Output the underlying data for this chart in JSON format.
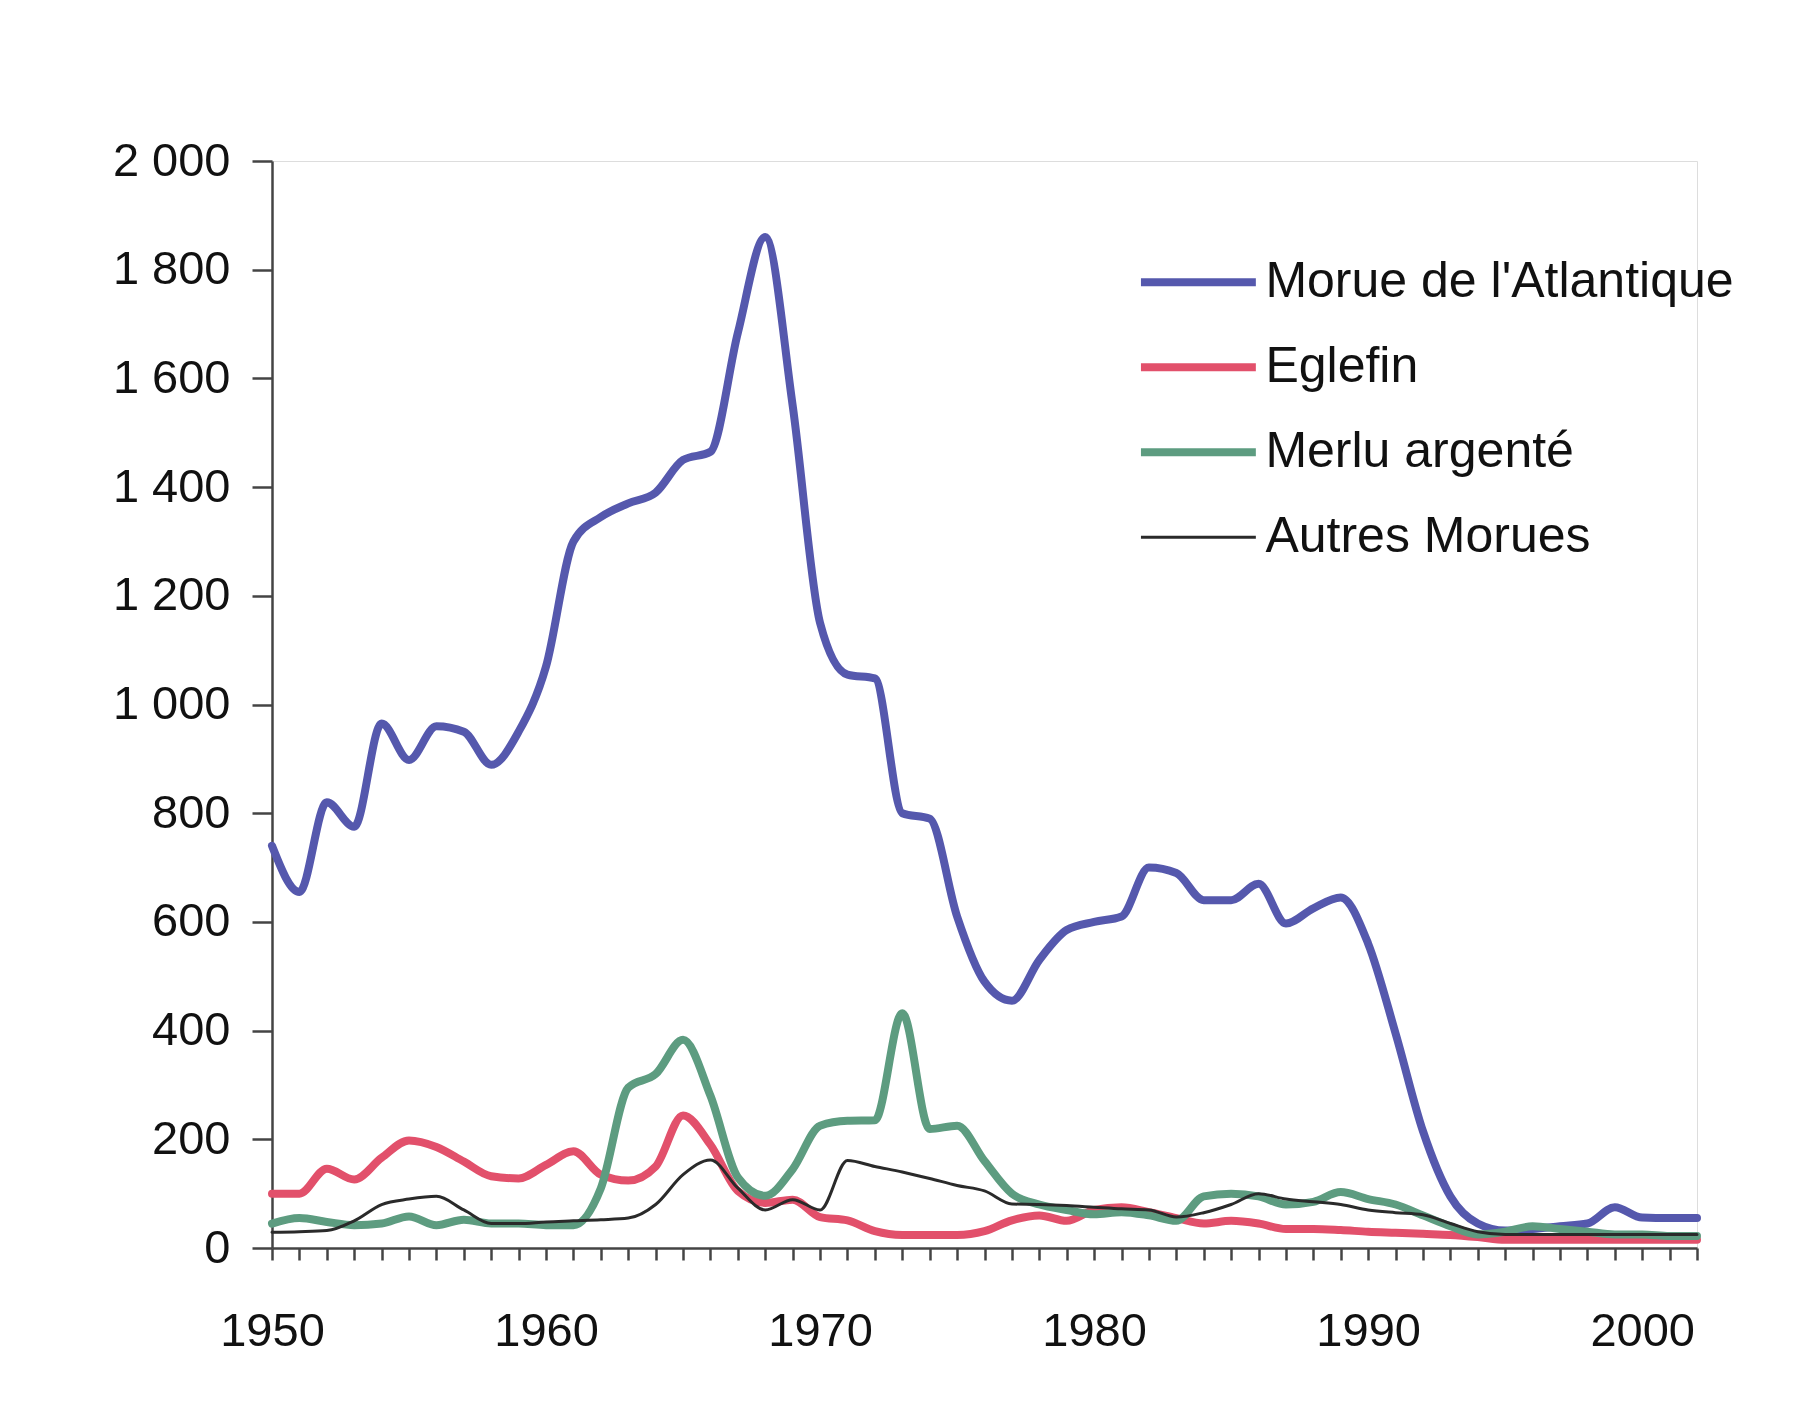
{
  "chart_data": {
    "type": "line",
    "x": [
      1950,
      1951,
      1952,
      1953,
      1954,
      1955,
      1956,
      1957,
      1958,
      1959,
      1960,
      1961,
      1962,
      1963,
      1964,
      1965,
      1966,
      1967,
      1968,
      1969,
      1970,
      1971,
      1972,
      1973,
      1974,
      1975,
      1976,
      1977,
      1978,
      1979,
      1980,
      1981,
      1982,
      1983,
      1984,
      1985,
      1986,
      1987,
      1988,
      1989,
      1990,
      1991,
      1992,
      1993,
      1994,
      1995,
      1996,
      1997,
      1998,
      1999,
      2000,
      2001,
      2002
    ],
    "series": [
      {
        "name": "Morue de l'Atlantique",
        "color": "#5558ad",
        "values": [
          740,
          655,
          820,
          775,
          965,
          898,
          960,
          950,
          889,
          950,
          1070,
          1300,
          1345,
          1370,
          1390,
          1450,
          1465,
          1684,
          1860,
          1550,
          1150,
          1055,
          1048,
          800,
          790,
          610,
          490,
          455,
          530,
          585,
          600,
          610,
          700,
          690,
          640,
          640,
          670,
          597,
          625,
          645,
          560,
          395,
          215,
          95,
          45,
          32,
          35,
          40,
          45,
          75,
          56,
          55,
          55
        ]
      },
      {
        "name": "Eglefin",
        "color": "#e2506b",
        "values": [
          100,
          100,
          146,
          126,
          166,
          198,
          186,
          159,
          132,
          128,
          153,
          178,
          135,
          124,
          150,
          244,
          190,
          105,
          83,
          89,
          57,
          51,
          31,
          24,
          24,
          24,
          31,
          51,
          60,
          50,
          70,
          75,
          66,
          55,
          45,
          50,
          45,
          35,
          35,
          33,
          30,
          28,
          26,
          24,
          20,
          15,
          15,
          15,
          15,
          15,
          15,
          15,
          15
        ]
      },
      {
        "name": "Merlu argenté",
        "color": "#5d9c80",
        "values": [
          45,
          55,
          48,
          42,
          45,
          58,
          42,
          52,
          45,
          45,
          42,
          42,
          110,
          295,
          320,
          383,
          280,
          130,
          96,
          145,
          225,
          234,
          235,
          432,
          219,
          225,
          160,
          100,
          80,
          70,
          62,
          66,
          60,
          50,
          95,
          100,
          95,
          80,
          85,
          103,
          90,
          80,
          60,
          40,
          25,
          30,
          40,
          35,
          30,
          25,
          25,
          22,
          22
        ]
      },
      {
        "name": "Autres Morues",
        "color": "#2a2a2a",
        "values": [
          29,
          30,
          32,
          50,
          80,
          90,
          95,
          70,
          45,
          45,
          48,
          50,
          52,
          55,
          80,
          135,
          162,
          110,
          70,
          89,
          70,
          161,
          150,
          140,
          128,
          115,
          105,
          81,
          80,
          78,
          75,
          72,
          70,
          57,
          65,
          80,
          100,
          90,
          85,
          80,
          70,
          65,
          61,
          45,
          30,
          25,
          25,
          25,
          25,
          25,
          25,
          25,
          25
        ]
      }
    ],
    "xlim": [
      1950,
      2002
    ],
    "xticks": [
      1950,
      {
        "value": 1951,
        "label": null
      },
      {
        "value": 1952,
        "label": null
      },
      {
        "value": 1953,
        "label": null
      },
      {
        "value": 1954,
        "label": null
      },
      {
        "value": 1955,
        "label": null
      },
      {
        "value": 1956,
        "label": null
      },
      {
        "value": 1957,
        "label": null
      },
      {
        "value": 1958,
        "label": null
      },
      {
        "value": 1959,
        "label": null
      },
      1960,
      {
        "value": 1961,
        "label": null
      },
      {
        "value": 1962,
        "label": null
      },
      {
        "value": 1963,
        "label": null
      },
      {
        "value": 1964,
        "label": null
      },
      {
        "value": 1965,
        "label": null
      },
      {
        "value": 1966,
        "label": null
      },
      {
        "value": 1967,
        "label": null
      },
      {
        "value": 1968,
        "label": null
      },
      {
        "value": 1969,
        "label": null
      },
      1970,
      {
        "value": 1971,
        "label": null
      },
      {
        "value": 1972,
        "label": null
      },
      {
        "value": 1973,
        "label": null
      },
      {
        "value": 1974,
        "label": null
      },
      {
        "value": 1975,
        "label": null
      },
      {
        "value": 1976,
        "label": null
      },
      {
        "value": 1977,
        "label": null
      },
      {
        "value": 1978,
        "label": null
      },
      {
        "value": 1979,
        "label": null
      },
      1980,
      {
        "value": 1981,
        "label": null
      },
      {
        "value": 1982,
        "label": null
      },
      {
        "value": 1983,
        "label": null
      },
      {
        "value": 1984,
        "label": null
      },
      {
        "value": 1985,
        "label": null
      },
      {
        "value": 1986,
        "label": null
      },
      {
        "value": 1987,
        "label": null
      },
      {
        "value": 1988,
        "label": null
      },
      {
        "value": 1989,
        "label": null
      },
      1990,
      {
        "value": 1991,
        "label": null
      },
      {
        "value": 1992,
        "label": null
      },
      {
        "value": 1993,
        "label": null
      },
      {
        "value": 1994,
        "label": null
      },
      {
        "value": 1995,
        "label": null
      },
      {
        "value": 1996,
        "label": null
      },
      {
        "value": 1997,
        "label": null
      },
      {
        "value": 1998,
        "label": null
      },
      {
        "value": 1999,
        "label": null
      },
      2000,
      {
        "value": 2001,
        "label": null
      },
      {
        "value": 2002,
        "label": null
      }
    ],
    "ylim": [
      0,
      2000
    ],
    "yticks": [
      0,
      200,
      400,
      600,
      800,
      {
        "value": 1000,
        "label": "1 000"
      },
      {
        "value": 1200,
        "label": "1 200"
      },
      {
        "value": 1400,
        "label": "1 400"
      },
      {
        "value": 1600,
        "label": "1 600"
      },
      {
        "value": 1800,
        "label": "1 800"
      },
      {
        "value": 2000,
        "label": "2 000"
      }
    ],
    "legend": "top right"
  }
}
